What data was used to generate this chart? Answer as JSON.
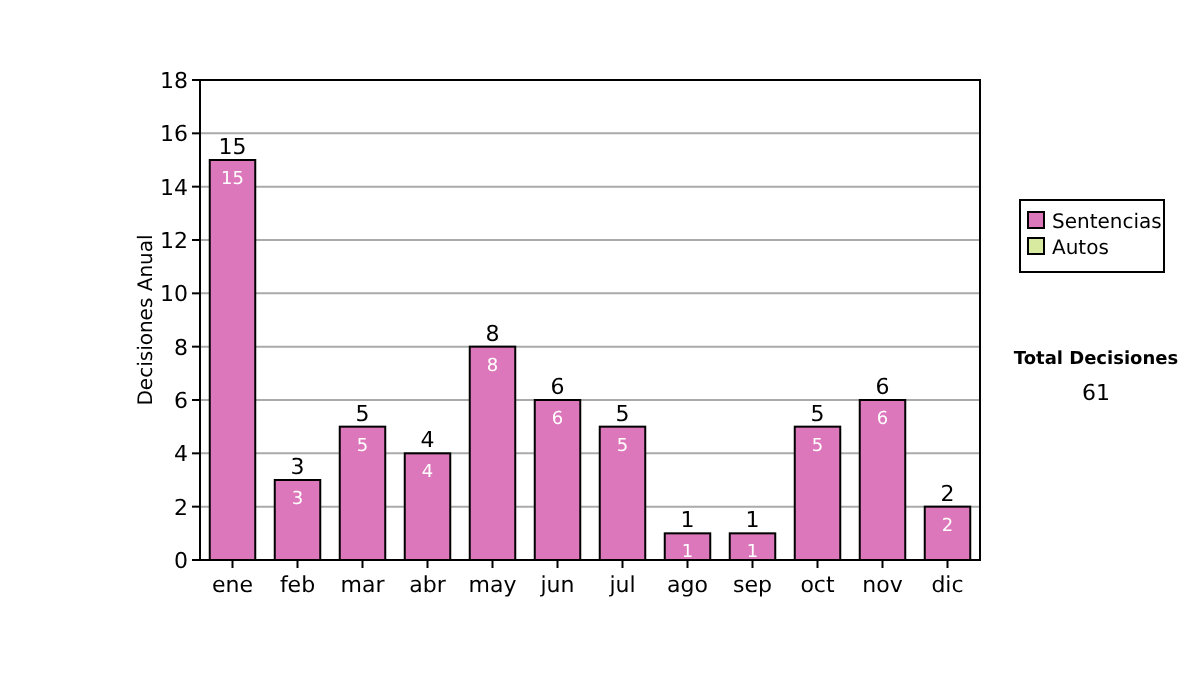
{
  "chart_data": {
    "type": "bar",
    "ylabel": "Decisiones Anual",
    "categories": [
      "ene",
      "feb",
      "mar",
      "abr",
      "may",
      "jun",
      "jul",
      "ago",
      "sep",
      "oct",
      "nov",
      "dic"
    ],
    "series": [
      {
        "name": "Sentencias",
        "color": "#dd77bb",
        "values": [
          15,
          3,
          5,
          4,
          8,
          6,
          5,
          1,
          1,
          5,
          6,
          2
        ]
      },
      {
        "name": "Autos",
        "color": "#d8eaa0",
        "values": [
          null,
          null,
          null,
          null,
          null,
          null,
          null,
          null,
          null,
          null,
          null,
          null
        ]
      }
    ],
    "data_labels": true,
    "totals": [
      "15",
      "3",
      "5",
      "4",
      "8",
      "6",
      "5",
      "1",
      "1",
      "5",
      "6",
      "2"
    ],
    "ylim": [
      0,
      18
    ],
    "yticks": [
      0,
      2,
      4,
      6,
      8,
      10,
      12,
      14,
      16,
      18
    ],
    "grid": "y",
    "legend": "right",
    "annotations": [
      "Total Decisiones",
      "61"
    ]
  }
}
